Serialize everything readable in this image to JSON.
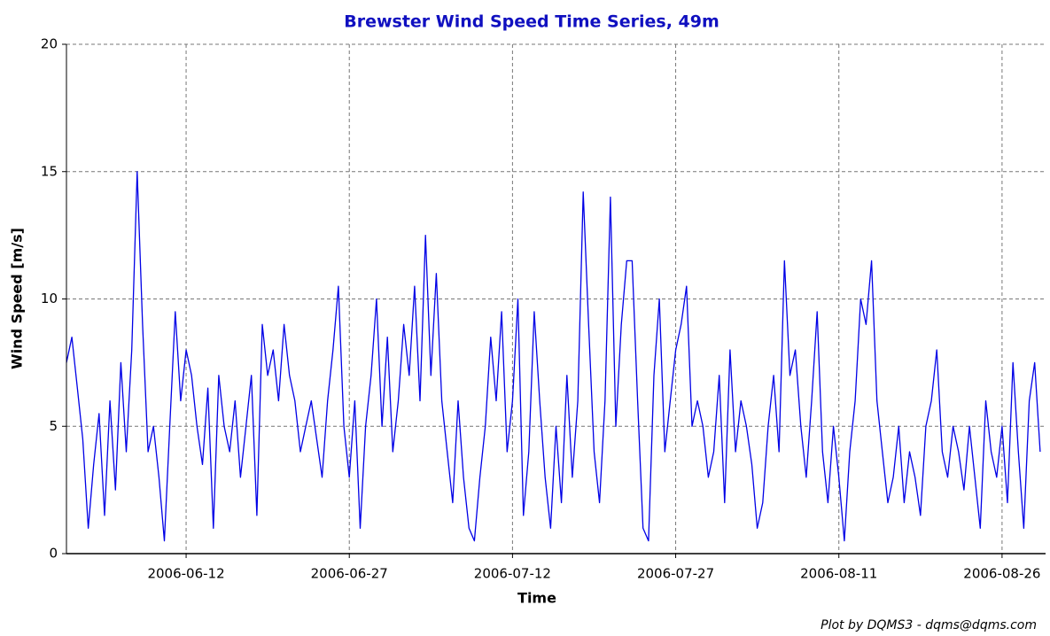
{
  "chart_data": {
    "type": "line",
    "title": "Brewster Wind Speed Time Series, 49m",
    "x_label": "Time",
    "y_label": "Wind Speed [m/s]",
    "credit": "Plot by DQMS3 - dqms@dqms.com",
    "color": "#0000e6",
    "grid": true,
    "xlim": [
      "2006-06-01 00:00",
      "2006-08-30 00:00"
    ],
    "xticks": [
      "2006-06-12",
      "2006-06-27",
      "2006-07-12",
      "2006-07-27",
      "2006-08-11",
      "2006-08-26"
    ],
    "ylim": [
      0,
      20
    ],
    "yticks": [
      0,
      5,
      10,
      15,
      20
    ],
    "x": [
      "2006-06-01 00:00",
      "2006-06-01 12:00",
      "2006-06-02 00:00",
      "2006-06-02 12:00",
      "2006-06-03 00:00",
      "2006-06-03 12:00",
      "2006-06-04 00:00",
      "2006-06-04 12:00",
      "2006-06-05 00:00",
      "2006-06-05 12:00",
      "2006-06-06 00:00",
      "2006-06-06 12:00",
      "2006-06-07 00:00",
      "2006-06-07 12:00",
      "2006-06-08 00:00",
      "2006-06-08 12:00",
      "2006-06-09 00:00",
      "2006-06-09 12:00",
      "2006-06-10 00:00",
      "2006-06-10 12:00",
      "2006-06-11 00:00",
      "2006-06-11 12:00",
      "2006-06-12 00:00",
      "2006-06-12 12:00",
      "2006-06-13 00:00",
      "2006-06-13 12:00",
      "2006-06-14 00:00",
      "2006-06-14 12:00",
      "2006-06-15 00:00",
      "2006-06-15 12:00",
      "2006-06-16 00:00",
      "2006-06-16 12:00",
      "2006-06-17 00:00",
      "2006-06-17 12:00",
      "2006-06-18 00:00",
      "2006-06-18 12:00",
      "2006-06-19 00:00",
      "2006-06-19 12:00",
      "2006-06-20 00:00",
      "2006-06-20 12:00",
      "2006-06-21 00:00",
      "2006-06-21 12:00",
      "2006-06-22 00:00",
      "2006-06-22 12:00",
      "2006-06-23 00:00",
      "2006-06-23 12:00",
      "2006-06-24 00:00",
      "2006-06-24 12:00",
      "2006-06-25 00:00",
      "2006-06-25 12:00",
      "2006-06-26 00:00",
      "2006-06-26 12:00",
      "2006-06-27 00:00",
      "2006-06-27 12:00",
      "2006-06-28 00:00",
      "2006-06-28 12:00",
      "2006-06-29 00:00",
      "2006-06-29 12:00",
      "2006-06-30 00:00",
      "2006-06-30 12:00",
      "2006-07-01 00:00",
      "2006-07-01 12:00",
      "2006-07-02 00:00",
      "2006-07-02 12:00",
      "2006-07-03 00:00",
      "2006-07-03 12:00",
      "2006-07-04 00:00",
      "2006-07-04 12:00",
      "2006-07-05 00:00",
      "2006-07-05 12:00",
      "2006-07-06 00:00",
      "2006-07-06 12:00",
      "2006-07-07 00:00",
      "2006-07-07 12:00",
      "2006-07-08 00:00",
      "2006-07-08 12:00",
      "2006-07-09 00:00",
      "2006-07-09 12:00",
      "2006-07-10 00:00",
      "2006-07-10 12:00",
      "2006-07-11 00:00",
      "2006-07-11 12:00",
      "2006-07-12 00:00",
      "2006-07-12 12:00",
      "2006-07-13 00:00",
      "2006-07-13 12:00",
      "2006-07-14 00:00",
      "2006-07-14 12:00",
      "2006-07-15 00:00",
      "2006-07-15 12:00",
      "2006-07-16 00:00",
      "2006-07-16 12:00",
      "2006-07-17 00:00",
      "2006-07-17 12:00",
      "2006-07-18 00:00",
      "2006-07-18 12:00",
      "2006-07-19 00:00",
      "2006-07-19 12:00",
      "2006-07-20 00:00",
      "2006-07-20 12:00",
      "2006-07-21 00:00",
      "2006-07-21 12:00",
      "2006-07-22 00:00",
      "2006-07-22 12:00",
      "2006-07-23 00:00",
      "2006-07-23 12:00",
      "2006-07-24 00:00",
      "2006-07-24 12:00",
      "2006-07-25 00:00",
      "2006-07-25 12:00",
      "2006-07-26 00:00",
      "2006-07-26 12:00",
      "2006-07-27 00:00",
      "2006-07-27 12:00",
      "2006-07-28 00:00",
      "2006-07-28 12:00",
      "2006-07-29 00:00",
      "2006-07-29 12:00",
      "2006-07-30 00:00",
      "2006-07-30 12:00",
      "2006-07-31 00:00",
      "2006-07-31 12:00",
      "2006-08-01 00:00",
      "2006-08-01 12:00",
      "2006-08-02 00:00",
      "2006-08-02 12:00",
      "2006-08-03 00:00",
      "2006-08-03 12:00",
      "2006-08-04 00:00",
      "2006-08-04 12:00",
      "2006-08-05 00:00",
      "2006-08-05 12:00",
      "2006-08-06 00:00",
      "2006-08-06 12:00",
      "2006-08-07 00:00",
      "2006-08-07 12:00",
      "2006-08-08 00:00",
      "2006-08-08 12:00",
      "2006-08-09 00:00",
      "2006-08-09 12:00",
      "2006-08-10 00:00",
      "2006-08-10 12:00",
      "2006-08-11 00:00",
      "2006-08-11 12:00",
      "2006-08-12 00:00",
      "2006-08-12 12:00",
      "2006-08-13 00:00",
      "2006-08-13 12:00",
      "2006-08-14 00:00",
      "2006-08-14 12:00",
      "2006-08-15 00:00",
      "2006-08-15 12:00",
      "2006-08-16 00:00",
      "2006-08-16 12:00",
      "2006-08-17 00:00",
      "2006-08-17 12:00",
      "2006-08-18 00:00",
      "2006-08-18 12:00",
      "2006-08-19 00:00",
      "2006-08-19 12:00",
      "2006-08-20 00:00",
      "2006-08-20 12:00",
      "2006-08-21 00:00",
      "2006-08-21 12:00",
      "2006-08-22 00:00",
      "2006-08-22 12:00",
      "2006-08-23 00:00",
      "2006-08-23 12:00",
      "2006-08-24 00:00",
      "2006-08-24 12:00",
      "2006-08-25 00:00",
      "2006-08-25 12:00",
      "2006-08-26 00:00",
      "2006-08-26 12:00",
      "2006-08-27 00:00",
      "2006-08-27 12:00",
      "2006-08-28 00:00",
      "2006-08-28 12:00",
      "2006-08-29 00:00",
      "2006-08-29 12:00"
    ],
    "values": [
      7.5,
      8.5,
      6.5,
      4.5,
      1,
      3.5,
      5.5,
      1.5,
      6,
      2.5,
      7.5,
      4,
      8,
      15,
      9,
      4,
      5,
      3,
      0.5,
      5,
      9.5,
      6,
      8,
      7,
      5,
      3.5,
      6.5,
      1,
      7,
      5,
      4,
      6,
      3,
      5,
      7,
      1.5,
      9,
      7,
      8,
      6,
      9,
      7,
      6,
      4,
      5,
      6,
      4.5,
      3,
      6,
      8,
      10.5,
      5,
      3,
      6,
      1,
      5,
      7,
      10,
      5,
      8.5,
      4,
      6,
      9,
      7,
      10.5,
      6,
      12.5,
      7,
      11,
      6,
      4,
      2,
      6,
      3,
      1,
      0.5,
      3,
      5,
      8.5,
      6,
      9.5,
      4,
      6,
      10,
      1.5,
      4,
      9.5,
      6,
      3,
      1,
      5,
      2,
      7,
      3,
      6,
      14.2,
      9,
      4,
      2,
      6,
      14,
      5,
      9,
      11.5,
      11.5,
      6,
      1,
      0.5,
      7,
      10,
      4,
      6,
      8,
      9,
      10.5,
      5,
      6,
      5,
      3,
      4,
      7,
      2,
      8,
      4,
      6,
      5,
      3.5,
      1,
      2,
      5,
      7,
      4,
      11.5,
      7,
      8,
      5,
      3,
      6,
      9.5,
      4,
      2,
      5,
      3,
      0.5,
      4,
      6,
      10,
      9,
      11.5,
      6,
      4,
      2,
      3,
      5,
      2,
      4,
      3,
      1.5,
      5,
      6,
      8,
      4,
      3,
      5,
      4,
      2.5,
      5,
      3,
      1,
      6,
      4,
      3,
      5,
      2,
      7.5,
      4,
      1,
      6,
      7.5,
      4
    ]
  }
}
